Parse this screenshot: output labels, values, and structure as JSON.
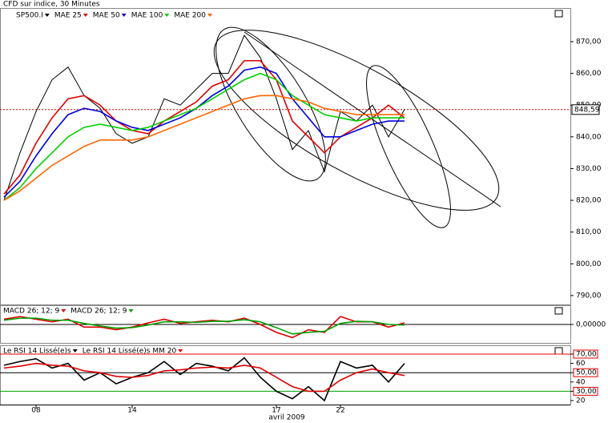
{
  "chart_data": [
    {
      "type": "line",
      "title": "CFD sur indice, 30 Minutes",
      "categories": [
        null,
        null,
        "08",
        null,
        null,
        null,
        null,
        null,
        "14",
        null,
        null,
        null,
        null,
        null,
        null,
        null,
        null,
        "17",
        null,
        null,
        null,
        "22",
        null,
        null,
        null,
        null
      ],
      "x_axis_label": "avril 2009",
      "ylim": [
        787.2,
        880.6
      ],
      "yticks": [
        {
          "value": 790,
          "label": "790,00"
        },
        {
          "value": 800,
          "label": "800,00"
        },
        {
          "value": 810,
          "label": "810,00"
        },
        {
          "value": 820,
          "label": "820,00"
        },
        {
          "value": 830,
          "label": "830,00"
        },
        {
          "value": 840,
          "label": "840,00"
        },
        {
          "value": 850,
          "label": "850,00"
        },
        {
          "value": 860,
          "label": "860,00"
        },
        {
          "value": 870,
          "label": "870,00"
        }
      ],
      "last_price": {
        "value": 848.59,
        "label": "848,59"
      },
      "series": [
        {
          "name": "SP500.I",
          "color": "#000000",
          "values": [
            820,
            835,
            848,
            858,
            862,
            853,
            849,
            841,
            838,
            840,
            852,
            850,
            855,
            860,
            860,
            872,
            865,
            852,
            836,
            842,
            829,
            848,
            845,
            850,
            840,
            848.59
          ]
        },
        {
          "name": "MAE 25",
          "color": "#e00000",
          "values": [
            822,
            828,
            838,
            846,
            852,
            853,
            850,
            845,
            842,
            841,
            845,
            848,
            851,
            856,
            858,
            864,
            864,
            858,
            845,
            840,
            835,
            840,
            843,
            846,
            850,
            846
          ]
        },
        {
          "name": "MAE 50",
          "color": "#0000e0",
          "values": [
            821,
            826,
            834,
            841,
            847,
            849,
            848,
            845,
            843,
            842,
            844,
            846,
            849,
            853,
            856,
            861,
            862,
            860,
            852,
            846,
            840,
            840,
            842,
            844,
            845,
            845
          ]
        },
        {
          "name": "MAE 100",
          "color": "#00d000",
          "values": [
            820,
            824,
            830,
            835,
            840,
            843,
            844,
            843,
            842,
            843,
            845,
            847,
            849,
            852,
            855,
            858,
            860,
            858,
            853,
            850,
            847,
            846,
            845,
            846,
            846,
            846
          ]
        },
        {
          "name": "MAE 200",
          "color": "#ff6600",
          "values": [
            820,
            823,
            827,
            831,
            834,
            837,
            839,
            839,
            839,
            840,
            842,
            844,
            846,
            848,
            850,
            852,
            853,
            853,
            852,
            851,
            849,
            848,
            847,
            847,
            847,
            847
          ]
        }
      ]
    },
    {
      "type": "line",
      "ylim": [
        -3.5,
        3.5
      ],
      "yticks": [
        {
          "value": 0,
          "label": "0,00000"
        }
      ],
      "levels": [
        0
      ],
      "level_colors": [
        "#000000"
      ],
      "series": [
        {
          "name": "MACD 26; 12; 9",
          "color": "#e00000",
          "values": [
            1,
            1.5,
            1,
            0.5,
            1,
            -0.5,
            -0.5,
            -1,
            -0.5,
            0.3,
            1,
            0.2,
            0.5,
            0.8,
            0.5,
            1.2,
            0,
            -1.5,
            -2.5,
            -1,
            -1.5,
            1.5,
            0.5,
            0.5,
            -0.5,
            0.3
          ]
        },
        {
          "name": "MACD 26; 12; 9",
          "color": "#00a000",
          "values": [
            0.8,
            1.2,
            1.2,
            0.8,
            0.8,
            0.2,
            -0.3,
            -0.7,
            -0.6,
            -0.1,
            0.5,
            0.5,
            0.4,
            0.6,
            0.6,
            0.9,
            0.5,
            -0.6,
            -1.8,
            -1.5,
            -1.3,
            0.2,
            0.6,
            0.5,
            0,
            -0.1
          ]
        }
      ]
    },
    {
      "type": "line",
      "ylim": [
        15.7,
        78.6
      ],
      "tick_box_color": "#e00000",
      "yticks": [
        20,
        {
          "value": 30,
          "label": "30,00"
        },
        40,
        {
          "value": 50,
          "label": "50,00"
        },
        60,
        {
          "value": 70,
          "label": "70,00"
        }
      ],
      "levels": [
        70,
        50,
        30
      ],
      "level_colors": [
        "#e00000",
        "#000000",
        "#00a000"
      ],
      "series": [
        {
          "name": "Le RSI 14 Lissé(e)s",
          "color": "#000000",
          "values": [
            58,
            62,
            65,
            55,
            60,
            42,
            50,
            38,
            45,
            50,
            62,
            48,
            60,
            57,
            52,
            66,
            45,
            30,
            22,
            35,
            20,
            62,
            55,
            58,
            40,
            60
          ]
        },
        {
          "name": "Le RSI 14 Lissé(e)s MM 20",
          "color": "#e00000",
          "values": [
            55,
            57,
            60,
            58,
            57,
            52,
            50,
            46,
            45,
            47,
            52,
            53,
            55,
            56,
            55,
            58,
            55,
            45,
            35,
            30,
            30,
            42,
            50,
            54,
            50,
            47
          ]
        }
      ]
    }
  ]
}
